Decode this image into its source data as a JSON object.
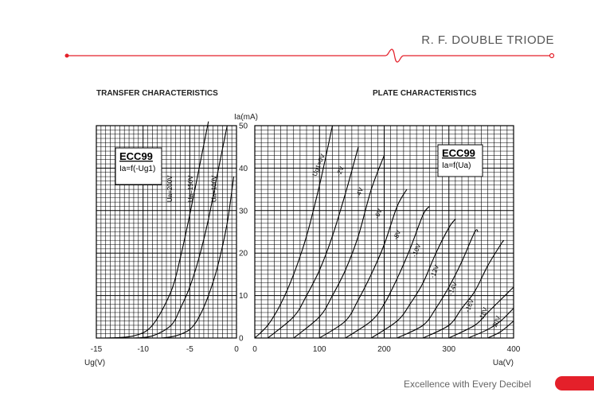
{
  "header": {
    "title": "R. F. DOUBLE TRIODE",
    "accent_color": "#e4202a"
  },
  "footer": {
    "text": "Excellence with Every Decibel"
  },
  "chart_data": [
    {
      "type": "line",
      "title": "TRANSFER CHARACTERISTICS",
      "xlabel": "Ug(V)",
      "ylabel": "Ia(mA)",
      "xlim": [
        -15,
        0
      ],
      "ylim": [
        0,
        50
      ],
      "x_ticks": [
        "-15",
        "-10",
        "-5",
        "0"
      ],
      "y_ticks": [
        "0",
        "10",
        "20",
        "30",
        "40",
        "50"
      ],
      "grid": true,
      "legend_box": {
        "tube": "ECC99",
        "formula": "Ia=f(-Ug1)"
      },
      "series": [
        {
          "name": "Ua=200V",
          "points": [
            [
              -14,
              0
            ],
            [
              -11,
              0.5
            ],
            [
              -9,
              3
            ],
            [
              -7,
              11
            ],
            [
              -6,
              19
            ],
            [
              -5,
              29
            ],
            [
              -4,
              40
            ],
            [
              -3,
              51
            ]
          ]
        },
        {
          "name": "Ua=150V",
          "points": [
            [
              -11,
              0
            ],
            [
              -9,
              0.5
            ],
            [
              -7,
              3
            ],
            [
              -6,
              7
            ],
            [
              -5,
              12
            ],
            [
              -4,
              19
            ],
            [
              -3,
              28
            ],
            [
              -2,
              39
            ],
            [
              -1,
              50
            ]
          ]
        },
        {
          "name": "Ua=100V",
          "points": [
            [
              -8,
              0
            ],
            [
              -6.5,
              0.5
            ],
            [
              -5,
              2
            ],
            [
              -4,
              5
            ],
            [
              -3,
              10
            ],
            [
              -2,
              17
            ],
            [
              -1,
              27
            ],
            [
              -0.3,
              38
            ]
          ]
        }
      ]
    },
    {
      "type": "line",
      "title": "PLATE CHARACTERISTICS",
      "xlabel": "Ua(V)",
      "ylabel": "Ia(mA)",
      "xlim": [
        0,
        400
      ],
      "ylim": [
        0,
        50
      ],
      "x_ticks": [
        "0",
        "100",
        "200",
        "300",
        "400"
      ],
      "y_ticks": [
        "0",
        "10",
        "20",
        "30",
        "40",
        "50"
      ],
      "grid": true,
      "legend_box": {
        "tube": "ECC99",
        "formula": "Ia=f(Ua)"
      },
      "series": [
        {
          "name": "Ug1=0V",
          "points": [
            [
              0,
              0
            ],
            [
              20,
              3
            ],
            [
              40,
              8
            ],
            [
              60,
              15
            ],
            [
              80,
              24
            ],
            [
              100,
              36
            ],
            [
              120,
              50
            ]
          ]
        },
        {
          "name": "-2V",
          "points": [
            [
              20,
              0
            ],
            [
              60,
              5
            ],
            [
              80,
              10
            ],
            [
              100,
              16
            ],
            [
              120,
              24
            ],
            [
              140,
              34
            ],
            [
              160,
              45
            ]
          ]
        },
        {
          "name": "-4V",
          "points": [
            [
              60,
              0
            ],
            [
              100,
              5
            ],
            [
              120,
              10
            ],
            [
              140,
              16
            ],
            [
              160,
              24
            ],
            [
              180,
              35
            ],
            [
              200,
              43
            ]
          ]
        },
        {
          "name": "-6V",
          "points": [
            [
              100,
              0
            ],
            [
              140,
              4
            ],
            [
              160,
              9
            ],
            [
              180,
              15
            ],
            [
              200,
              22
            ],
            [
              220,
              31
            ],
            [
              235,
              35
            ]
          ]
        },
        {
          "name": "-8V",
          "points": [
            [
              140,
              0
            ],
            [
              180,
              4
            ],
            [
              200,
              8
            ],
            [
              220,
              14
            ],
            [
              240,
              21
            ],
            [
              260,
              29
            ],
            [
              270,
              31
            ]
          ]
        },
        {
          "name": "-10V",
          "points": [
            [
              180,
              0
            ],
            [
              220,
              4
            ],
            [
              240,
              8
            ],
            [
              260,
              13
            ],
            [
              280,
              20
            ],
            [
              300,
              26
            ],
            [
              310,
              28
            ]
          ]
        },
        {
          "name": "-12V",
          "points": [
            [
              220,
              0
            ],
            [
              260,
              3
            ],
            [
              280,
              7
            ],
            [
              300,
              12
            ],
            [
              320,
              18
            ],
            [
              340,
              25
            ],
            [
              345,
              25
            ]
          ]
        },
        {
          "name": "-14V",
          "points": [
            [
              260,
              0
            ],
            [
              300,
              3
            ],
            [
              320,
              7
            ],
            [
              340,
              11
            ],
            [
              360,
              17
            ],
            [
              380,
              22
            ],
            [
              385,
              23
            ]
          ]
        },
        {
          "name": "-16V",
          "points": [
            [
              300,
              0
            ],
            [
              340,
              3
            ],
            [
              360,
              6
            ],
            [
              380,
              9
            ],
            [
              400,
              12
            ]
          ]
        },
        {
          "name": "-18V",
          "points": [
            [
              330,
              0
            ],
            [
              360,
              2
            ],
            [
              380,
              4
            ],
            [
              400,
              7
            ]
          ]
        },
        {
          "name": "-20V",
          "points": [
            [
              360,
              0
            ],
            [
              380,
              1.5
            ],
            [
              400,
              4
            ]
          ]
        }
      ]
    }
  ]
}
